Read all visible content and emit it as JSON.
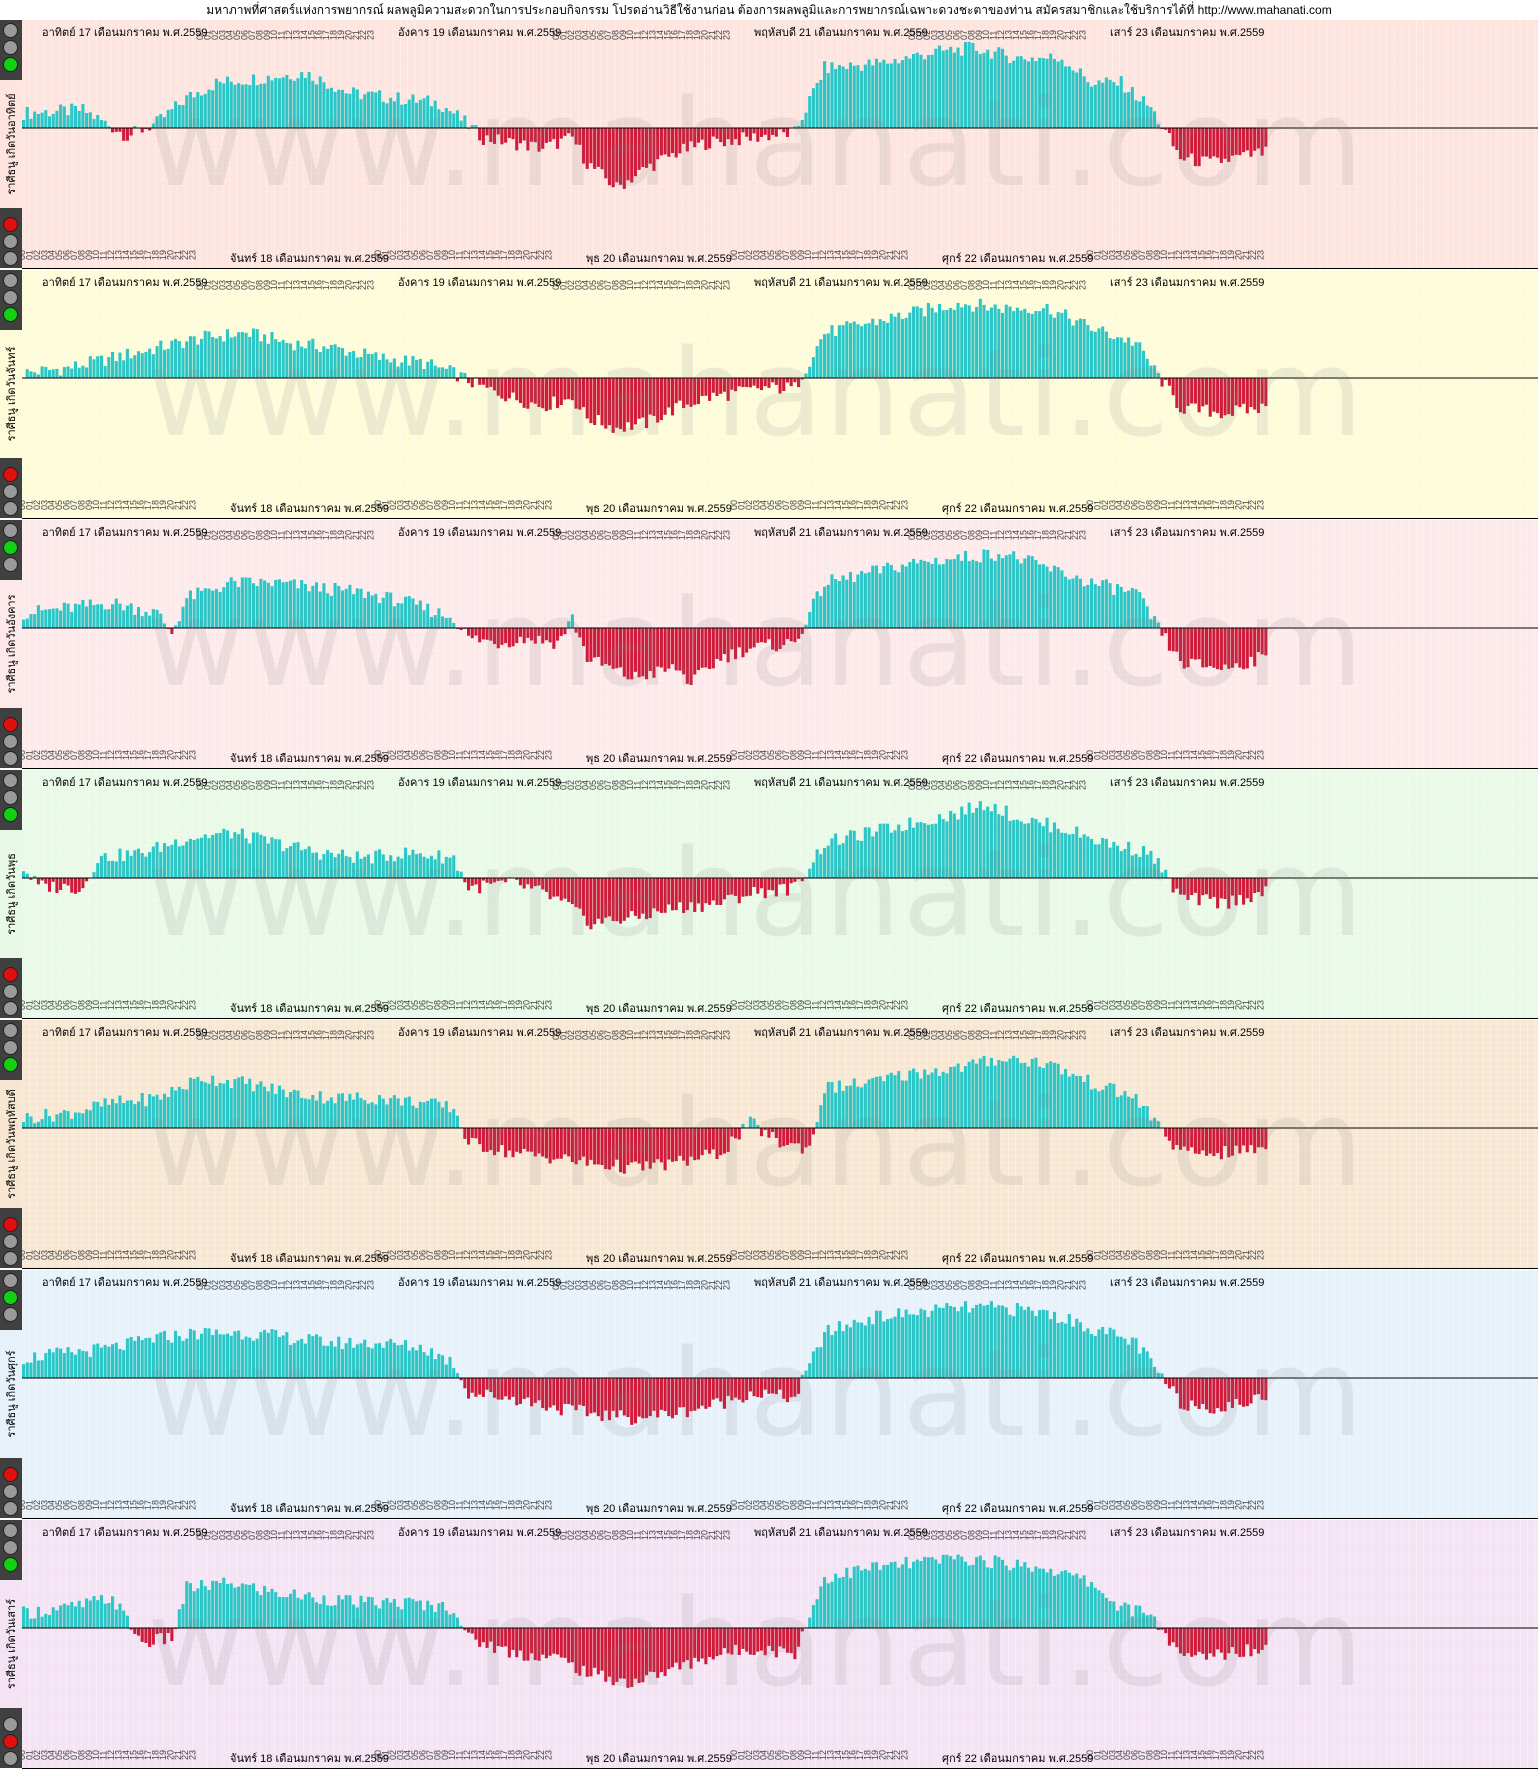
{
  "header": {
    "title": "มหาภาพที่ศาสตร์แห่งการพยากรณ์ ผลพลูมิความสะดวกในการประกอบกิจกรรม โปรดอ่านวิธีใช้งานก่อน ต้องการผลพลูมิและการพยากรณ์เฉพาะดวงชะตาของท่าน สมัครสมาชิกและใช้บริการได้ที่  http://www.mahanati.com"
  },
  "watermark": {
    "text": "www.mahanati.com"
  },
  "colors": {
    "positive": "#2cc6c6",
    "negative": "#d01a3a",
    "zero_line": "#000000",
    "light_green": "#12d012",
    "light_red": "#e01010",
    "light_gray": "#9a9a9a"
  },
  "days_top": [
    "อาทิตย์ 17 เดือนมกราคม พ.ศ.2559",
    "อังคาร 19 เดือนมกราคม พ.ศ.2559",
    "พฤหัสบดี 21 เดือนมกราคม พ.ศ.2559",
    "เสาร์ 23 เดือนมกราคม พ.ศ.2559"
  ],
  "days_bottom": [
    "จันทร์ 18 เดือนมกราคม พ.ศ.2559",
    "พุธ 20 เดือนมกราคม พ.ศ.2559",
    "ศุกร์ 22 เดือนมกราคม พ.ศ.2559"
  ],
  "hour_ticks": [
    "00",
    "01",
    "02",
    "03",
    "04",
    "05",
    "06",
    "07",
    "08",
    "09",
    "10",
    "11",
    "12",
    "13",
    "14",
    "15",
    "16",
    "17",
    "18",
    "19",
    "20",
    "21",
    "22",
    "23"
  ],
  "chart_data": [
    {
      "type": "bar",
      "label": "ราศีธนู เกิดวันอาทิตย์",
      "background": "#fde4df",
      "grid": true,
      "x_unit": "hour",
      "days": 7,
      "ylim": [
        -1,
        1
      ],
      "anchors": [
        [
          0,
          0.15
        ],
        [
          8,
          0.18
        ],
        [
          14,
          -0.08
        ],
        [
          18,
          0.05
        ],
        [
          22,
          0.3
        ],
        [
          26,
          0.45
        ],
        [
          32,
          0.5
        ],
        [
          38,
          0.55
        ],
        [
          44,
          0.35
        ],
        [
          50,
          0.3
        ],
        [
          56,
          0.25
        ],
        [
          58,
          0.15
        ],
        [
          62,
          -0.1
        ],
        [
          66,
          -0.15
        ],
        [
          70,
          -0.2
        ],
        [
          74,
          -0.1
        ],
        [
          76,
          -0.35
        ],
        [
          80,
          -0.6
        ],
        [
          84,
          -0.4
        ],
        [
          88,
          -0.25
        ],
        [
          92,
          -0.15
        ],
        [
          96,
          -0.12
        ],
        [
          100,
          -0.08
        ],
        [
          104,
          -0.05
        ],
        [
          108,
          0.6
        ],
        [
          116,
          0.65
        ],
        [
          122,
          0.75
        ],
        [
          128,
          0.8
        ],
        [
          134,
          0.7
        ],
        [
          140,
          0.7
        ],
        [
          144,
          0.45
        ],
        [
          148,
          0.45
        ],
        [
          152,
          0.2
        ],
        [
          156,
          -0.3
        ],
        [
          160,
          -0.35
        ],
        [
          167,
          -0.25
        ]
      ],
      "lights": [
        "gray",
        "gray",
        "green",
        "gray",
        "gray",
        "red",
        "gray",
        "gray"
      ]
    },
    {
      "type": "bar",
      "label": "ราศีธนู เกิดวันจันทร์",
      "background": "#fdfbd8",
      "grid": true,
      "x_unit": "hour",
      "days": 7,
      "ylim": [
        -1,
        1
      ],
      "anchors": [
        [
          0,
          0.05
        ],
        [
          6,
          0.1
        ],
        [
          12,
          0.2
        ],
        [
          18,
          0.3
        ],
        [
          24,
          0.4
        ],
        [
          30,
          0.45
        ],
        [
          36,
          0.35
        ],
        [
          42,
          0.3
        ],
        [
          48,
          0.2
        ],
        [
          54,
          0.15
        ],
        [
          58,
          0.05
        ],
        [
          62,
          -0.1
        ],
        [
          66,
          -0.2
        ],
        [
          70,
          -0.28
        ],
        [
          74,
          -0.2
        ],
        [
          76,
          -0.4
        ],
        [
          80,
          -0.5
        ],
        [
          84,
          -0.45
        ],
        [
          88,
          -0.3
        ],
        [
          92,
          -0.2
        ],
        [
          96,
          -0.15
        ],
        [
          100,
          -0.1
        ],
        [
          104,
          -0.1
        ],
        [
          108,
          0.45
        ],
        [
          114,
          0.55
        ],
        [
          120,
          0.65
        ],
        [
          126,
          0.75
        ],
        [
          132,
          0.7
        ],
        [
          138,
          0.7
        ],
        [
          144,
          0.5
        ],
        [
          150,
          0.35
        ],
        [
          156,
          -0.3
        ],
        [
          162,
          -0.35
        ],
        [
          167,
          -0.3
        ]
      ],
      "lights": [
        "gray",
        "gray",
        "green",
        "gray",
        "gray",
        "red",
        "gray",
        "gray"
      ]
    },
    {
      "type": "bar",
      "label": "ราศีธนู เกิดวันอังคาร",
      "background": "#fde9ea",
      "grid": true,
      "x_unit": "hour",
      "days": 7,
      "ylim": [
        -1,
        1
      ],
      "anchors": [
        [
          0,
          0.15
        ],
        [
          6,
          0.2
        ],
        [
          12,
          0.25
        ],
        [
          18,
          0.15
        ],
        [
          20,
          -0.05
        ],
        [
          22,
          0.3
        ],
        [
          28,
          0.45
        ],
        [
          34,
          0.45
        ],
        [
          40,
          0.4
        ],
        [
          46,
          0.35
        ],
        [
          52,
          0.25
        ],
        [
          58,
          0.1
        ],
        [
          60,
          -0.1
        ],
        [
          64,
          -0.15
        ],
        [
          68,
          -0.1
        ],
        [
          72,
          -0.15
        ],
        [
          74,
          0.1
        ],
        [
          76,
          -0.3
        ],
        [
          82,
          -0.5
        ],
        [
          88,
          -0.4
        ],
        [
          90,
          -0.55
        ],
        [
          94,
          -0.3
        ],
        [
          98,
          -0.2
        ],
        [
          104,
          -0.15
        ],
        [
          108,
          0.45
        ],
        [
          114,
          0.55
        ],
        [
          120,
          0.65
        ],
        [
          126,
          0.7
        ],
        [
          132,
          0.75
        ],
        [
          138,
          0.6
        ],
        [
          144,
          0.45
        ],
        [
          150,
          0.35
        ],
        [
          156,
          -0.35
        ],
        [
          162,
          -0.4
        ],
        [
          167,
          -0.3
        ]
      ],
      "lights": [
        "gray",
        "green",
        "gray",
        "gray",
        "gray",
        "red",
        "gray",
        "gray"
      ]
    },
    {
      "type": "bar",
      "label": "ราศีธนู เกิดวันพุธ",
      "background": "#e9f9e7",
      "grid": true,
      "x_unit": "hour",
      "days": 7,
      "ylim": [
        -1,
        1
      ],
      "anchors": [
        [
          0,
          0.1
        ],
        [
          2,
          -0.08
        ],
        [
          8,
          -0.1
        ],
        [
          10,
          0.2
        ],
        [
          16,
          0.25
        ],
        [
          22,
          0.4
        ],
        [
          28,
          0.45
        ],
        [
          34,
          0.35
        ],
        [
          40,
          0.25
        ],
        [
          46,
          0.2
        ],
        [
          52,
          0.25
        ],
        [
          58,
          0.2
        ],
        [
          60,
          -0.1
        ],
        [
          66,
          -0.05
        ],
        [
          70,
          -0.15
        ],
        [
          74,
          -0.3
        ],
        [
          76,
          -0.45
        ],
        [
          82,
          -0.4
        ],
        [
          88,
          -0.3
        ],
        [
          94,
          -0.25
        ],
        [
          98,
          -0.15
        ],
        [
          104,
          -0.1
        ],
        [
          108,
          0.35
        ],
        [
          114,
          0.45
        ],
        [
          120,
          0.55
        ],
        [
          126,
          0.65
        ],
        [
          130,
          0.75
        ],
        [
          134,
          0.6
        ],
        [
          140,
          0.5
        ],
        [
          146,
          0.35
        ],
        [
          152,
          0.25
        ],
        [
          156,
          -0.2
        ],
        [
          162,
          -0.25
        ],
        [
          167,
          -0.15
        ]
      ],
      "lights": [
        "gray",
        "gray",
        "green",
        "gray",
        "gray",
        "red",
        "gray",
        "gray"
      ]
    },
    {
      "type": "bar",
      "label": "ราศีธนู เกิดวันพฤหัสบดี",
      "background": "#f7e7d2",
      "grid": true,
      "x_unit": "hour",
      "days": 7,
      "ylim": [
        -1,
        1
      ],
      "anchors": [
        [
          0,
          0.1
        ],
        [
          6,
          0.15
        ],
        [
          12,
          0.25
        ],
        [
          18,
          0.3
        ],
        [
          24,
          0.5
        ],
        [
          30,
          0.45
        ],
        [
          36,
          0.35
        ],
        [
          42,
          0.3
        ],
        [
          48,
          0.3
        ],
        [
          54,
          0.25
        ],
        [
          58,
          0.2
        ],
        [
          60,
          -0.15
        ],
        [
          66,
          -0.25
        ],
        [
          72,
          -0.3
        ],
        [
          76,
          -0.35
        ],
        [
          82,
          -0.4
        ],
        [
          88,
          -0.35
        ],
        [
          94,
          -0.25
        ],
        [
          98,
          0.05
        ],
        [
          102,
          -0.15
        ],
        [
          106,
          -0.2
        ],
        [
          108,
          0.4
        ],
        [
          114,
          0.45
        ],
        [
          120,
          0.55
        ],
        [
          126,
          0.6
        ],
        [
          132,
          0.7
        ],
        [
          138,
          0.65
        ],
        [
          144,
          0.45
        ],
        [
          150,
          0.3
        ],
        [
          156,
          -0.25
        ],
        [
          162,
          -0.25
        ],
        [
          167,
          -0.2
        ]
      ],
      "lights": [
        "gray",
        "gray",
        "green",
        "gray",
        "gray",
        "red",
        "gray",
        "gray"
      ]
    },
    {
      "type": "bar",
      "label": "ราศีธนู เกิดวันศุกร์",
      "background": "#e6f1fa",
      "grid": true,
      "x_unit": "hour",
      "days": 7,
      "ylim": [
        -1,
        1
      ],
      "anchors": [
        [
          0,
          0.2
        ],
        [
          6,
          0.25
        ],
        [
          12,
          0.3
        ],
        [
          18,
          0.4
        ],
        [
          24,
          0.45
        ],
        [
          30,
          0.45
        ],
        [
          36,
          0.4
        ],
        [
          42,
          0.35
        ],
        [
          48,
          0.35
        ],
        [
          54,
          0.3
        ],
        [
          58,
          0.15
        ],
        [
          60,
          -0.15
        ],
        [
          66,
          -0.2
        ],
        [
          72,
          -0.3
        ],
        [
          76,
          -0.35
        ],
        [
          82,
          -0.4
        ],
        [
          88,
          -0.35
        ],
        [
          94,
          -0.25
        ],
        [
          98,
          -0.15
        ],
        [
          104,
          -0.2
        ],
        [
          108,
          0.45
        ],
        [
          114,
          0.6
        ],
        [
          120,
          0.65
        ],
        [
          126,
          0.7
        ],
        [
          132,
          0.7
        ],
        [
          138,
          0.65
        ],
        [
          144,
          0.5
        ],
        [
          150,
          0.35
        ],
        [
          156,
          -0.25
        ],
        [
          162,
          -0.3
        ],
        [
          167,
          -0.2
        ]
      ],
      "lights": [
        "gray",
        "green",
        "gray",
        "gray",
        "gray",
        "red",
        "gray",
        "gray"
      ]
    },
    {
      "type": "bar",
      "label": "ราศีธนู เกิดวันเสาร์",
      "background": "#f3e3f3",
      "grid": true,
      "x_unit": "hour",
      "days": 7,
      "ylim": [
        -1,
        1
      ],
      "anchors": [
        [
          0,
          0.15
        ],
        [
          6,
          0.2
        ],
        [
          12,
          0.3
        ],
        [
          16,
          -0.15
        ],
        [
          20,
          -0.1
        ],
        [
          22,
          0.4
        ],
        [
          28,
          0.45
        ],
        [
          34,
          0.35
        ],
        [
          40,
          0.3
        ],
        [
          46,
          0.25
        ],
        [
          52,
          0.25
        ],
        [
          58,
          0.2
        ],
        [
          60,
          -0.1
        ],
        [
          66,
          -0.25
        ],
        [
          72,
          -0.3
        ],
        [
          76,
          -0.45
        ],
        [
          82,
          -0.55
        ],
        [
          88,
          -0.4
        ],
        [
          92,
          -0.3
        ],
        [
          98,
          -0.2
        ],
        [
          104,
          -0.25
        ],
        [
          108,
          0.5
        ],
        [
          114,
          0.6
        ],
        [
          120,
          0.65
        ],
        [
          126,
          0.7
        ],
        [
          132,
          0.65
        ],
        [
          138,
          0.6
        ],
        [
          144,
          0.45
        ],
        [
          148,
          0.2
        ],
        [
          152,
          0.15
        ],
        [
          156,
          -0.3
        ],
        [
          162,
          -0.25
        ],
        [
          167,
          -0.2
        ]
      ],
      "lights": [
        "gray",
        "gray",
        "green",
        "gray",
        "gray",
        "gray",
        "red",
        "gray"
      ]
    }
  ]
}
